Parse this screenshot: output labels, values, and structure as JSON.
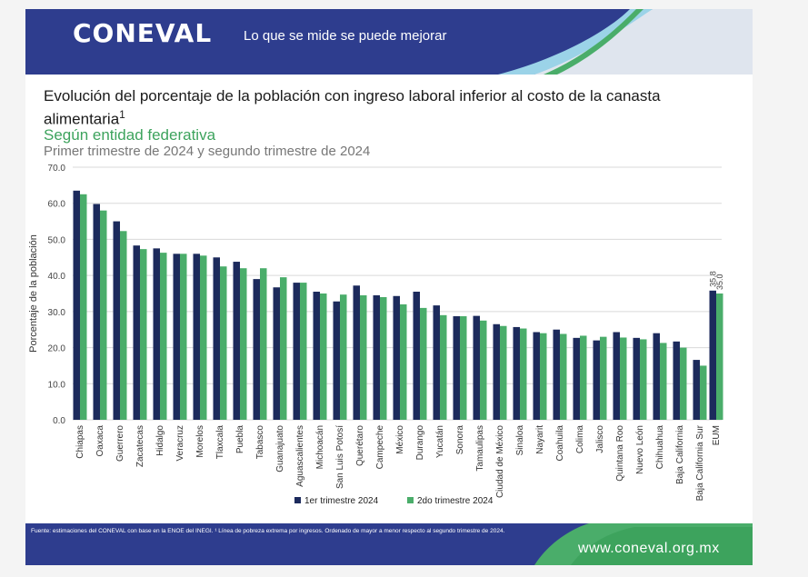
{
  "header": {
    "logo_text": "CONEVAL",
    "slogan": "Lo que se mide se puede mejorar"
  },
  "title": {
    "main": "Evolución del porcentaje de la población con ingreso laboral inferior al costo de la canasta alimentaria",
    "footnote_mark": "1",
    "subtitle": "Según entidad federativa",
    "period": "Primer trimestre de 2024 y segundo trimestre de 2024"
  },
  "footer": {
    "source": "Fuente: estimaciones del CONEVAL con base en la ENOE del INEGI. ¹ Línea de pobreza extrema por ingresos. Ordenado de mayor a menor respecto al segundo trimestre de 2024.",
    "website": "www.coneval.org.mx"
  },
  "colors": {
    "series1": "#1c2a5c",
    "series2": "#4aad6a",
    "header_bg": "#2e3d8e",
    "accent_green": "#3da35d"
  },
  "chart_data": {
    "type": "bar",
    "title": "Evolución del porcentaje de la población con ingreso laboral inferior al costo de la canasta alimentaria",
    "xlabel": "",
    "ylabel": "Porcentaje de la población",
    "ylim": [
      0,
      70
    ],
    "yticks": [
      "0.0",
      "10.0",
      "20.0",
      "30.0",
      "40.0",
      "50.0",
      "60.0",
      "70.0"
    ],
    "grid": true,
    "legend_position": "bottom",
    "categories": [
      "Chiapas",
      "Oaxaca",
      "Guerrero",
      "Zacatecas",
      "Hidalgo",
      "Veracruz",
      "Morelos",
      "Tlaxcala",
      "Puebla",
      "Tabasco",
      "Guanajuato",
      "Aguascalientes",
      "Michoacán",
      "San Luis Potosí",
      "Querétaro",
      "Campeche",
      "México",
      "Durango",
      "Yucatán",
      "Sonora",
      "Tamaulipas",
      "Ciudad de México",
      "Sinaloa",
      "Nayarit",
      "Coahuila",
      "Colima",
      "Jalisco",
      "Quintana Roo",
      "Nuevo León",
      "Chihuahua",
      "Baja California",
      "Baja California Sur",
      "EUM"
    ],
    "series": [
      {
        "name": "1er trimestre 2024",
        "values": [
          63.5,
          59.8,
          55.0,
          48.3,
          47.5,
          46.0,
          46.0,
          45.0,
          43.8,
          39.0,
          36.7,
          38.0,
          35.5,
          32.8,
          37.2,
          34.5,
          34.3,
          35.5,
          31.7,
          28.7,
          28.8,
          26.5,
          25.7,
          24.3,
          25.0,
          22.7,
          22.0,
          24.3,
          22.7,
          24.0,
          21.7,
          16.6,
          35.8
        ]
      },
      {
        "name": "2do trimestre 2024",
        "values": [
          62.5,
          58.0,
          52.3,
          47.3,
          46.3,
          46.0,
          45.5,
          42.5,
          42.0,
          42.0,
          39.5,
          38.0,
          35.0,
          34.7,
          34.5,
          34.0,
          32.0,
          31.0,
          29.0,
          28.7,
          27.5,
          26.0,
          25.3,
          24.0,
          23.8,
          23.3,
          23.0,
          22.8,
          22.3,
          21.3,
          20.0,
          15.0,
          35.0
        ]
      }
    ],
    "data_labels": [
      {
        "category": "EUM",
        "series": "1er trimestre 2024",
        "text": "35.8"
      },
      {
        "category": "EUM",
        "series": "2do trimestre 2024",
        "text": "35.0"
      }
    ]
  }
}
